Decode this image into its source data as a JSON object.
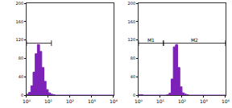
{
  "chart_data": [
    {
      "type": "histogram",
      "bins": [
        1,
        1.259,
        1.585,
        1.995,
        2.512,
        3.162,
        3.981,
        5.012,
        6.31,
        7.943,
        10,
        12.59,
        15.85,
        19.95,
        25.12,
        31.62,
        39.81,
        50.12,
        63.1,
        79.43,
        100,
        125.9,
        158.5,
        199.5,
        251.2,
        316.2,
        398.1,
        501.2,
        631,
        794.3,
        1000,
        1259,
        1585,
        1995,
        2512,
        3162,
        3981,
        5012,
        6310,
        7943,
        10000
      ],
      "counts": [
        2,
        6,
        20,
        50,
        90,
        110,
        95,
        60,
        30,
        12,
        5,
        2,
        1,
        0,
        0,
        0,
        0,
        0,
        0,
        0,
        0,
        0,
        0,
        0,
        0,
        0,
        0,
        0,
        0,
        0,
        0,
        0,
        0,
        0,
        0,
        0,
        0,
        0,
        0,
        0
      ],
      "color": "#7d22b8",
      "log": "x",
      "xlim": [
        1,
        10000
      ],
      "xticks": [
        {
          "value": 1,
          "label": "10⁰"
        },
        {
          "value": 10,
          "label": "10¹"
        },
        {
          "value": 100,
          "label": "10²"
        },
        {
          "value": 1000,
          "label": "10³"
        },
        {
          "value": 10000,
          "label": "10⁴"
        }
      ],
      "ylim": [
        0,
        200
      ],
      "yticks": [
        0,
        40,
        80,
        120,
        160,
        200
      ],
      "gates": [
        {
          "range": [
            1,
            14
          ],
          "y": 113
        }
      ]
    },
    {
      "type": "histogram",
      "bins": [
        1,
        1.259,
        1.585,
        1.995,
        2.512,
        3.162,
        3.981,
        5.012,
        6.31,
        7.943,
        10,
        12.59,
        15.85,
        19.95,
        25.12,
        31.62,
        39.81,
        50.12,
        63.1,
        79.43,
        100,
        125.9,
        158.5,
        199.5,
        251.2,
        316.2,
        398.1,
        501.2,
        631,
        794.3,
        1000,
        1259,
        1585,
        1995,
        2512,
        3162,
        3981,
        5012,
        6310,
        7943,
        10000
      ],
      "counts": [
        1,
        1,
        0,
        0,
        0,
        0,
        0,
        0,
        0,
        0,
        0,
        0,
        0,
        1,
        4,
        35,
        105,
        110,
        60,
        18,
        5,
        2,
        1,
        0,
        0,
        0,
        0,
        0,
        0,
        0,
        0,
        0,
        0,
        0,
        0,
        0,
        0,
        0,
        0,
        0
      ],
      "color": "#7d22b8",
      "log": "x",
      "xlim": [
        1,
        10000
      ],
      "xticks": [
        {
          "value": 1,
          "label": "10⁰"
        },
        {
          "value": 10,
          "label": "10¹"
        },
        {
          "value": 100,
          "label": "10²"
        },
        {
          "value": 1000,
          "label": "10³"
        },
        {
          "value": 10000,
          "label": "10⁴"
        }
      ],
      "ylim": [
        0,
        200
      ],
      "yticks": [
        0,
        40,
        80,
        120,
        160,
        200
      ],
      "gates": [
        {
          "label": "M1",
          "range": [
            1,
            14
          ],
          "y": 113
        },
        {
          "label": "M2",
          "range": [
            14,
            10000
          ],
          "y": 113
        }
      ]
    }
  ]
}
